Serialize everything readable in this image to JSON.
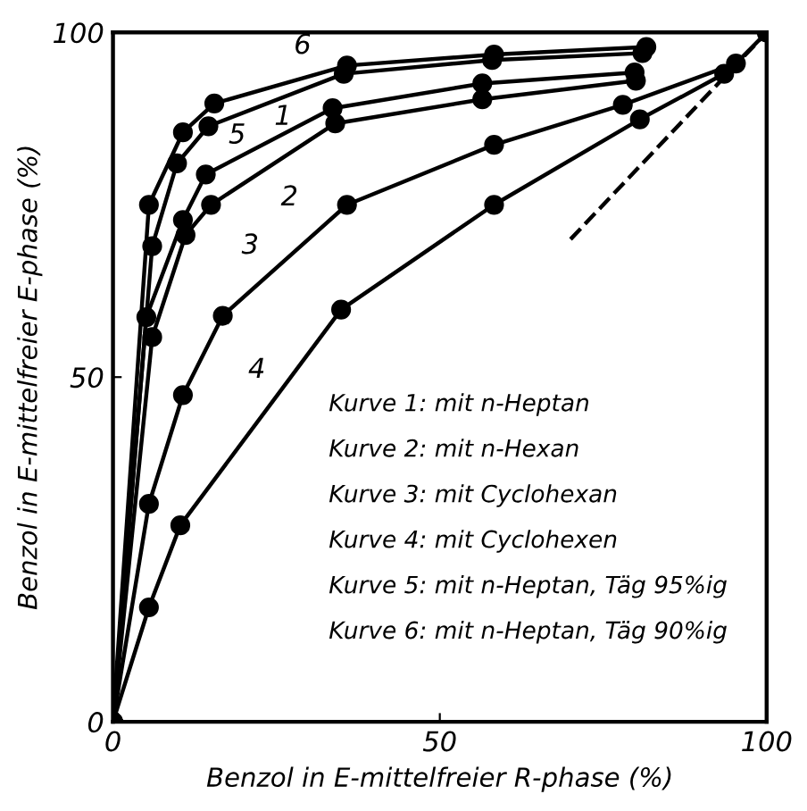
{
  "chart_data": {
    "type": "line",
    "xlabel": "Benzol in E-mittelfreier R-phase (%)",
    "ylabel": "Benzol in E-mittelfreier E-phase (%)",
    "xlim": [
      0,
      100
    ],
    "ylim": [
      0,
      100
    ],
    "xticks": [
      0,
      50,
      100
    ],
    "yticks": [
      0,
      50,
      100
    ],
    "grid": false,
    "legend": false,
    "marker": "circle",
    "line_style": "solid",
    "series": [
      {
        "name": "6",
        "color": "#000000",
        "x": [
          0,
          5.5,
          10.7,
          15.5,
          35.8,
          58.3,
          81.6
        ],
        "values": [
          0,
          75,
          85.5,
          89.7,
          95.2,
          96.8,
          97.9
        ]
      },
      {
        "name": "5",
        "color": "#000000",
        "x": [
          0,
          6,
          9.8,
          14.6,
          35.3,
          58,
          81
        ],
        "values": [
          0,
          69,
          81,
          86.4,
          94,
          96,
          97
        ]
      },
      {
        "name": "1",
        "color": "#000000",
        "x": [
          0,
          5.1,
          10.7,
          14.2,
          33.6,
          56.5,
          79.8
        ],
        "values": [
          0,
          58.7,
          72.8,
          79.4,
          89,
          92.6,
          94.2
        ]
      },
      {
        "name": "2",
        "color": "#000000",
        "x": [
          0,
          6,
          11.1,
          15,
          34,
          56.5,
          80
        ],
        "values": [
          0,
          55.8,
          70.6,
          75,
          86.8,
          90.3,
          93
        ]
      },
      {
        "name": "3",
        "color": "#000000",
        "x": [
          0,
          5.5,
          10.7,
          16.8,
          35.8,
          58.3,
          78,
          95.3,
          100
        ],
        "values": [
          0,
          31.6,
          47.4,
          58.9,
          75,
          83.7,
          89.5,
          95.5,
          100
        ]
      },
      {
        "name": "4",
        "color": "#000000",
        "x": [
          0,
          5.5,
          10.3,
          34.9,
          58.3,
          80.6,
          93.5
        ],
        "values": [
          0,
          16.6,
          28.5,
          59.8,
          75,
          87.4,
          94
        ]
      },
      {
        "color": "#000000",
        "x": [
          70,
          100
        ],
        "values": [
          70,
          100
        ],
        "marker": "none",
        "line_style": "dashed"
      }
    ],
    "annotations": [
      "Kurve 1: mit n-Heptan",
      "Kurve 2: mit n-Hexan",
      "Kurve 3: mit Cyclohexan",
      "Kurve 4: mit Cyclohexen",
      "Kurve 5: mit n-Heptan, Täg 95%ig",
      "Kurve 6: mit n-Heptan, Täg 90%ig"
    ]
  }
}
